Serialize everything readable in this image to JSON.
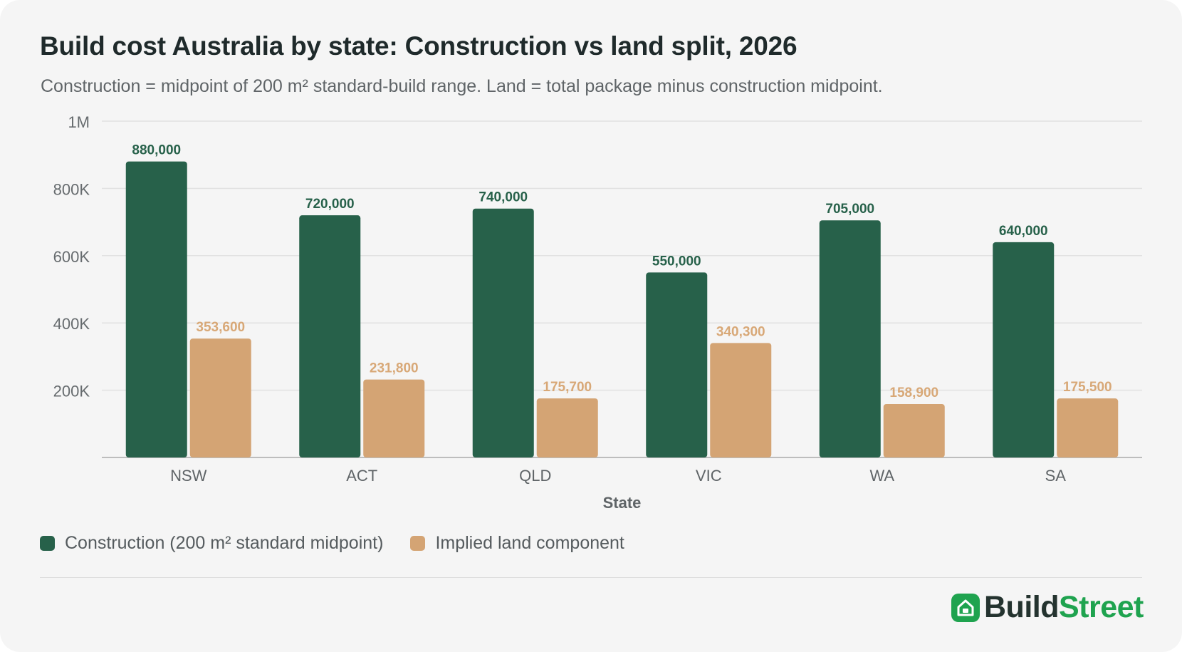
{
  "header": {
    "title": "Build cost Australia by state: Construction vs land split, 2026",
    "subtitle": "Construction = midpoint of 200 m² standard-build range. Land = total package minus construction midpoint."
  },
  "chart_data": {
    "type": "bar",
    "categories": [
      "NSW",
      "ACT",
      "QLD",
      "VIC",
      "WA",
      "SA"
    ],
    "series": [
      {
        "name": "Construction (200 m² standard midpoint)",
        "color": "#27614a",
        "label_color": "#27614a",
        "values": [
          880000,
          720000,
          740000,
          550000,
          705000,
          640000
        ],
        "labels": [
          "880,000",
          "720,000",
          "740,000",
          "550,000",
          "705,000",
          "640,000"
        ]
      },
      {
        "name": "Implied land component",
        "color": "#d4a474",
        "label_color": "#d8a877",
        "values": [
          353600,
          231800,
          175700,
          340300,
          158900,
          175500
        ],
        "labels": [
          "353,600",
          "231,800",
          "175,700",
          "340,300",
          "158,900",
          "175,500"
        ]
      }
    ],
    "xlabel": "State",
    "ylabel": "",
    "ylim": [
      0,
      1000000
    ],
    "yticks": [
      {
        "value": 200000,
        "label": "200K"
      },
      {
        "value": 400000,
        "label": "400K"
      },
      {
        "value": 600000,
        "label": "600K"
      },
      {
        "value": 800000,
        "label": "800K"
      },
      {
        "value": 1000000,
        "label": "1M"
      }
    ],
    "grid": true,
    "legend_position": "bottom-left"
  },
  "legend": {
    "items": [
      {
        "label": "Construction (200 m² standard midpoint)",
        "color": "#27614a"
      },
      {
        "label": "Implied land component",
        "color": "#d4a474"
      }
    ]
  },
  "brand": {
    "name_part1": "Build",
    "name_part2": "Street",
    "icon": "house-icon",
    "color": "#1fa34f"
  }
}
